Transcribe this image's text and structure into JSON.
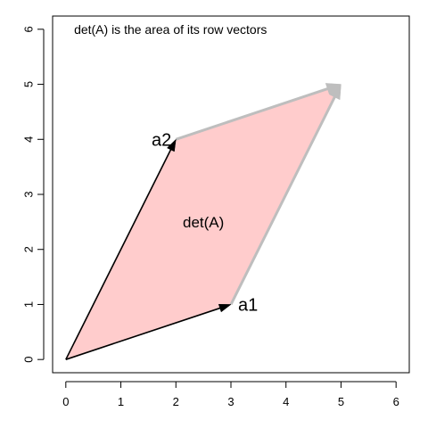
{
  "chart_data": {
    "type": "scatter",
    "title": "",
    "xlabel": "",
    "ylabel": "",
    "xlim": [
      -0.24,
      6.24
    ],
    "ylim": [
      -0.24,
      6.24
    ],
    "x_ticks": [
      "0",
      "1",
      "2",
      "3",
      "4",
      "5",
      "6"
    ],
    "y_ticks": [
      "0",
      "1",
      "2",
      "3",
      "4",
      "5",
      "6"
    ],
    "grid": false,
    "parallelogram": {
      "vertices": [
        [
          0,
          0
        ],
        [
          3,
          1
        ],
        [
          5,
          5
        ],
        [
          2,
          4
        ]
      ],
      "fill_color": "#ffcccc"
    },
    "vectors": [
      {
        "label": "a1",
        "from": [
          0,
          0
        ],
        "to": [
          3,
          1
        ],
        "color": "#000000"
      },
      {
        "label": "a2",
        "from": [
          0,
          0
        ],
        "to": [
          2,
          4
        ],
        "color": "#000000"
      },
      {
        "label": "",
        "from": [
          3,
          1
        ],
        "to": [
          5,
          5
        ],
        "color": "#bebebe"
      },
      {
        "label": "",
        "from": [
          2,
          4
        ],
        "to": [
          5,
          5
        ],
        "color": "#bebebe"
      }
    ],
    "area_label": {
      "text": "det(A)",
      "x": 2.5,
      "y": 2.5
    },
    "annotation": {
      "text": "det(A) is the area of its row vectors",
      "x": 0.15,
      "y": 6.0
    }
  }
}
